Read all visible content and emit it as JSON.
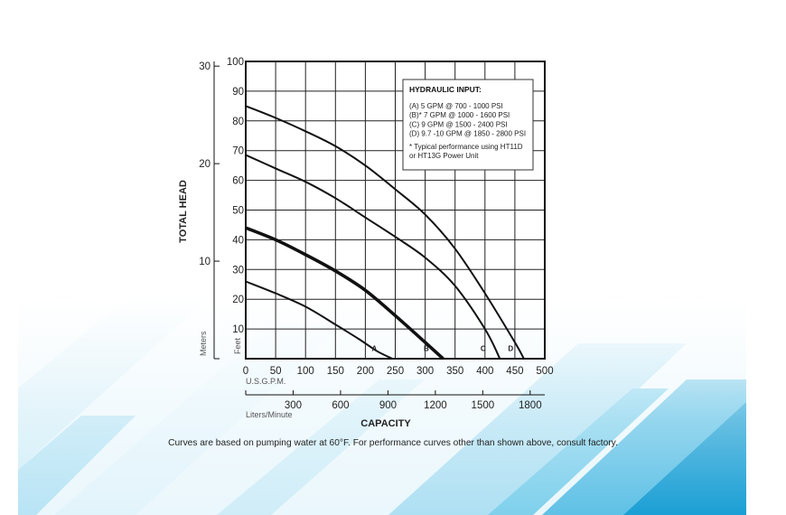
{
  "colors": {
    "background": "#ffffff",
    "decor_light": "#d3eef8",
    "decor_mid": "#7fd0ec",
    "decor_dark": "#1a9fd4",
    "line": "#111111",
    "grid": "#222222"
  },
  "footnote": "Curves are based on pumping water at 60°F. For performance curves other than shown above, consult factory.",
  "chart_data": {
    "type": "line",
    "ylabel": "TOTAL HEAD",
    "xlabel": "CAPACITY",
    "x_unit_primary": "U.S.G.P.M.",
    "x_unit_secondary": "Liters/Minute",
    "y_unit_primary": "Feet",
    "y_unit_secondary": "Meters",
    "xlim": [
      0,
      500
    ],
    "ylim": [
      0,
      100
    ],
    "x_ticks": [
      "0",
      "50",
      "100",
      "150",
      "200",
      "250",
      "300",
      "350",
      "400",
      "450",
      "500"
    ],
    "y_ticks": [
      "10",
      "20",
      "30",
      "40",
      "50",
      "60",
      "70",
      "80",
      "90",
      "100"
    ],
    "secondary_x_ticks": [
      {
        "label": "300",
        "value": 300
      },
      {
        "label": "600",
        "value": 600
      },
      {
        "label": "900",
        "value": 900
      },
      {
        "label": "1200",
        "value": 1200
      },
      {
        "label": "1500",
        "value": 1500
      },
      {
        "label": "1800",
        "value": 1800
      }
    ],
    "secondary_y_ticks": [
      {
        "label": "10",
        "value": 10
      },
      {
        "label": "20",
        "value": 20
      },
      {
        "label": "30",
        "value": 30
      }
    ],
    "grid": true,
    "legend": {
      "position": "top-right",
      "title": "HYDRAULIC INPUT:",
      "lines": [
        "(A) 5 GPM @ 700 - 1000 PSI",
        "(B)* 7 GPM @ 1000 - 1600 PSI",
        "(C) 9 GPM @ 1500 - 2400 PSI",
        "(D) 9.7 -10 GPM @ 1850 - 2800 PSI",
        "",
        "* Typical performance using HT11D",
        "or HT13G Power Unit"
      ]
    },
    "series": [
      {
        "name": "A",
        "bold": false,
        "x": [
          0,
          50,
          100,
          150,
          190,
          220,
          245
        ],
        "y": [
          26,
          22,
          17.5,
          11.5,
          6.5,
          2.5,
          0
        ],
        "label_x": 215,
        "label_y": 3.5
      },
      {
        "name": "B",
        "bold": true,
        "x": [
          0,
          50,
          100,
          150,
          200,
          250,
          300,
          330
        ],
        "y": [
          44,
          40,
          35,
          29.5,
          23,
          14.5,
          5.5,
          0
        ],
        "label_x": 302,
        "label_y": 3.5
      },
      {
        "name": "C",
        "bold": false,
        "x": [
          0,
          50,
          100,
          150,
          200,
          250,
          300,
          350,
          400,
          425
        ],
        "y": [
          68.5,
          64,
          59.5,
          54,
          47.5,
          41,
          34,
          24.5,
          10,
          0
        ],
        "label_x": 397,
        "label_y": 3.5
      },
      {
        "name": "D",
        "bold": false,
        "x": [
          0,
          50,
          100,
          150,
          200,
          250,
          300,
          350,
          400,
          450,
          465
        ],
        "y": [
          85,
          81,
          76.5,
          71.5,
          65,
          57,
          48.5,
          37,
          22,
          5.5,
          0
        ],
        "label_x": 443,
        "label_y": 3.5
      }
    ]
  }
}
